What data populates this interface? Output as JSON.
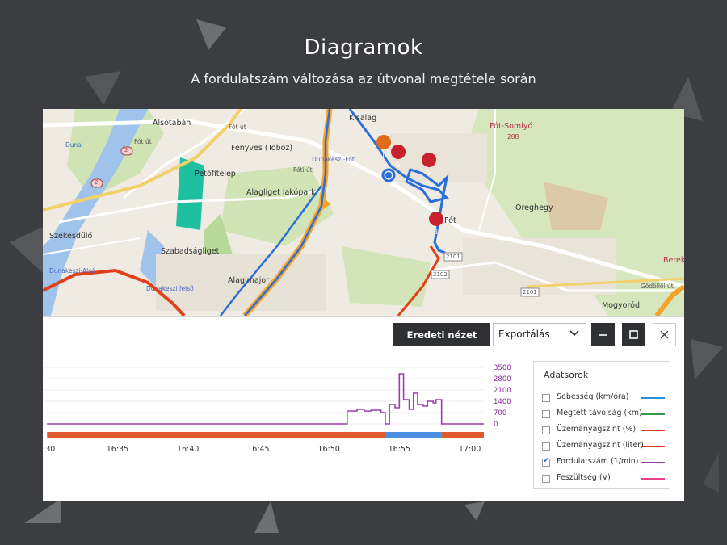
{
  "header": {
    "title": "Diagramok",
    "subtitle": "A fordulatszám változása az útvonal megtétele során"
  },
  "map": {
    "places": [
      "Alsótabán",
      "Kisalag",
      "Fót-Somlyó",
      "Fenyves (Toboz)",
      "Petőfitelep",
      "Alagliget lakópark",
      "Fót",
      "Öreghegy",
      "Székesdűlő",
      "Szabadságliget",
      "Alagimajor",
      "Mogyoród",
      "Bereki"
    ],
    "small_labels": [
      "Fót út",
      "Fót út",
      "Fóti út",
      "Dunakeszi-Fót",
      "Dunakeszi felső",
      "Dunakeszi-Alsó",
      "Gödöllői út",
      "Duna",
      "288"
    ],
    "road_numbers": [
      "2",
      "2",
      "2101",
      "2102",
      "2101"
    ],
    "markers": [
      "1",
      "9",
      "5",
      "8"
    ]
  },
  "toolbar": {
    "original_view_label": "Eredeti nézet",
    "export_label": "Exportálás"
  },
  "chart_data": {
    "type": "line",
    "x_ticks": [
      ":30",
      "16:35",
      "16:40",
      "16:45",
      "16:50",
      "16:55",
      "17:00"
    ],
    "y_ticks": [
      "3500",
      "2800",
      "2100",
      "1400",
      "700",
      "0"
    ],
    "ylim": [
      0,
      3500
    ],
    "series": [
      {
        "name": "Fordulatszám (1/min)",
        "color": "#9b3db0",
        "x": [
          "16:30",
          "16:51",
          "16:51.3",
          "16:52",
          "16:52.5",
          "16:53",
          "16:53.7",
          "16:54",
          "16:54.3",
          "16:54.7",
          "16:55",
          "16:55.3",
          "16:55.7",
          "16:56",
          "16:56.3",
          "16:56.7",
          "16:57",
          "16:57.4",
          "16:57.6",
          "16:58",
          "17:01"
        ],
        "values": [
          0,
          0,
          800,
          900,
          800,
          850,
          700,
          0,
          1200,
          1000,
          3100,
          1500,
          900,
          1900,
          1200,
          1100,
          1400,
          1300,
          1500,
          0,
          0
        ]
      }
    ],
    "status_bar": [
      {
        "from": "16:30",
        "to": "16:54",
        "color": "#e05a2b"
      },
      {
        "from": "16:54",
        "to": "16:58",
        "color": "#4a90e2"
      },
      {
        "from": "16:58",
        "to": "17:01",
        "color": "#e05a2b"
      }
    ]
  },
  "legend": {
    "title": "Adatsorok",
    "items": [
      {
        "label": "Sebesség (km/óra)",
        "checked": false,
        "color": "#2a8ee0"
      },
      {
        "label": "Megtett távolság (km)",
        "checked": false,
        "color": "#3a9a4a"
      },
      {
        "label": "Üzemanyagszint (%)",
        "checked": false,
        "color": "#d64020"
      },
      {
        "label": "Üzemanyagszint (liter)",
        "checked": false,
        "color": "#d64020"
      },
      {
        "label": "Fordulatszám (1/min)",
        "checked": true,
        "color": "#9b3db0"
      },
      {
        "label": "Feszültség (V)",
        "checked": false,
        "color": "#e8408a"
      }
    ]
  }
}
